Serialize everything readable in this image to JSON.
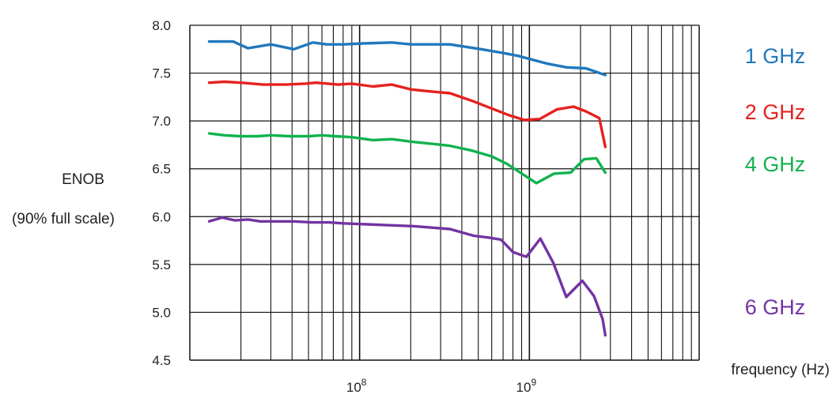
{
  "chart_data": {
    "type": "line",
    "title": "",
    "ylabel": "ENOB",
    "ylabel_sub": "(90% full scale)",
    "xlabel": "frequency (Hz)",
    "x_scale": "log",
    "xlim": [
      10000000,
      10000000000
    ],
    "ylim": [
      4.5,
      8.0
    ],
    "y_ticks": [
      "8.0",
      "7.5",
      "7.0",
      "6.5",
      "6.0",
      "5.5",
      "5.0",
      "4.5"
    ],
    "x_tick_labels": [
      {
        "base": "10",
        "exp": "8",
        "value": 100000000
      },
      {
        "base": "10",
        "exp": "9",
        "value": 1000000000
      }
    ],
    "grid": true,
    "legend": "right, labels aligned with each curve",
    "series": [
      {
        "name": "1 GHz",
        "color": "#1f78be",
        "x": [
          13000000,
          18000000,
          22000000,
          30000000,
          41000000,
          53000000,
          64000000,
          80000000,
          105000000,
          155000000,
          200000000,
          340000000,
          520000000,
          700000000,
          860000000,
          1270000000,
          1660000000,
          2150000000,
          2800000000
        ],
        "y": [
          7.83,
          7.83,
          7.76,
          7.8,
          7.75,
          7.82,
          7.8,
          7.8,
          7.81,
          7.82,
          7.8,
          7.8,
          7.75,
          7.71,
          7.68,
          7.6,
          7.56,
          7.55,
          7.48
        ]
      },
      {
        "name": "2 GHz",
        "color": "#e6211e",
        "x": [
          13000000,
          16000000,
          20000000,
          27000000,
          37000000,
          48000000,
          55000000,
          65000000,
          75000000,
          90000000,
          120000000,
          155000000,
          200000000,
          255000000,
          340000000,
          460000000,
          620000000,
          760000000,
          930000000,
          1150000000,
          1450000000,
          1820000000,
          2150000000,
          2580000000,
          2800000000
        ],
        "y": [
          7.4,
          7.41,
          7.4,
          7.38,
          7.38,
          7.39,
          7.4,
          7.39,
          7.38,
          7.39,
          7.36,
          7.38,
          7.33,
          7.31,
          7.29,
          7.21,
          7.12,
          7.06,
          7.01,
          7.02,
          7.12,
          7.15,
          7.1,
          7.03,
          6.73
        ]
      },
      {
        "name": "4 GHz",
        "color": "#12b24f",
        "x": [
          13000000,
          16000000,
          20000000,
          25000000,
          30000000,
          39000000,
          50000000,
          60000000,
          72000000,
          90000000,
          120000000,
          155000000,
          210000000,
          270000000,
          340000000,
          460000000,
          600000000,
          740000000,
          920000000,
          1100000000,
          1400000000,
          1750000000,
          2100000000,
          2480000000,
          2800000000
        ],
        "y": [
          6.87,
          6.85,
          6.84,
          6.84,
          6.85,
          6.84,
          6.84,
          6.85,
          6.84,
          6.83,
          6.8,
          6.81,
          6.78,
          6.76,
          6.74,
          6.69,
          6.63,
          6.55,
          6.44,
          6.35,
          6.45,
          6.46,
          6.6,
          6.61,
          6.46
        ]
      },
      {
        "name": "6 GHz",
        "color": "#7234a2",
        "x": [
          13000000,
          15500000,
          18500000,
          22000000,
          26000000,
          32000000,
          41000000,
          52000000,
          66000000,
          80000000,
          110000000,
          150000000,
          210000000,
          340000000,
          470000000,
          580000000,
          680000000,
          800000000,
          960000000,
          1160000000,
          1380000000,
          1650000000,
          2050000000,
          2400000000,
          2700000000,
          2800000000
        ],
        "y": [
          5.95,
          5.99,
          5.96,
          5.97,
          5.95,
          5.95,
          5.95,
          5.94,
          5.94,
          5.93,
          5.92,
          5.91,
          5.9,
          5.87,
          5.8,
          5.78,
          5.76,
          5.63,
          5.58,
          5.77,
          5.52,
          5.16,
          5.33,
          5.17,
          4.93,
          4.76
        ]
      }
    ]
  }
}
